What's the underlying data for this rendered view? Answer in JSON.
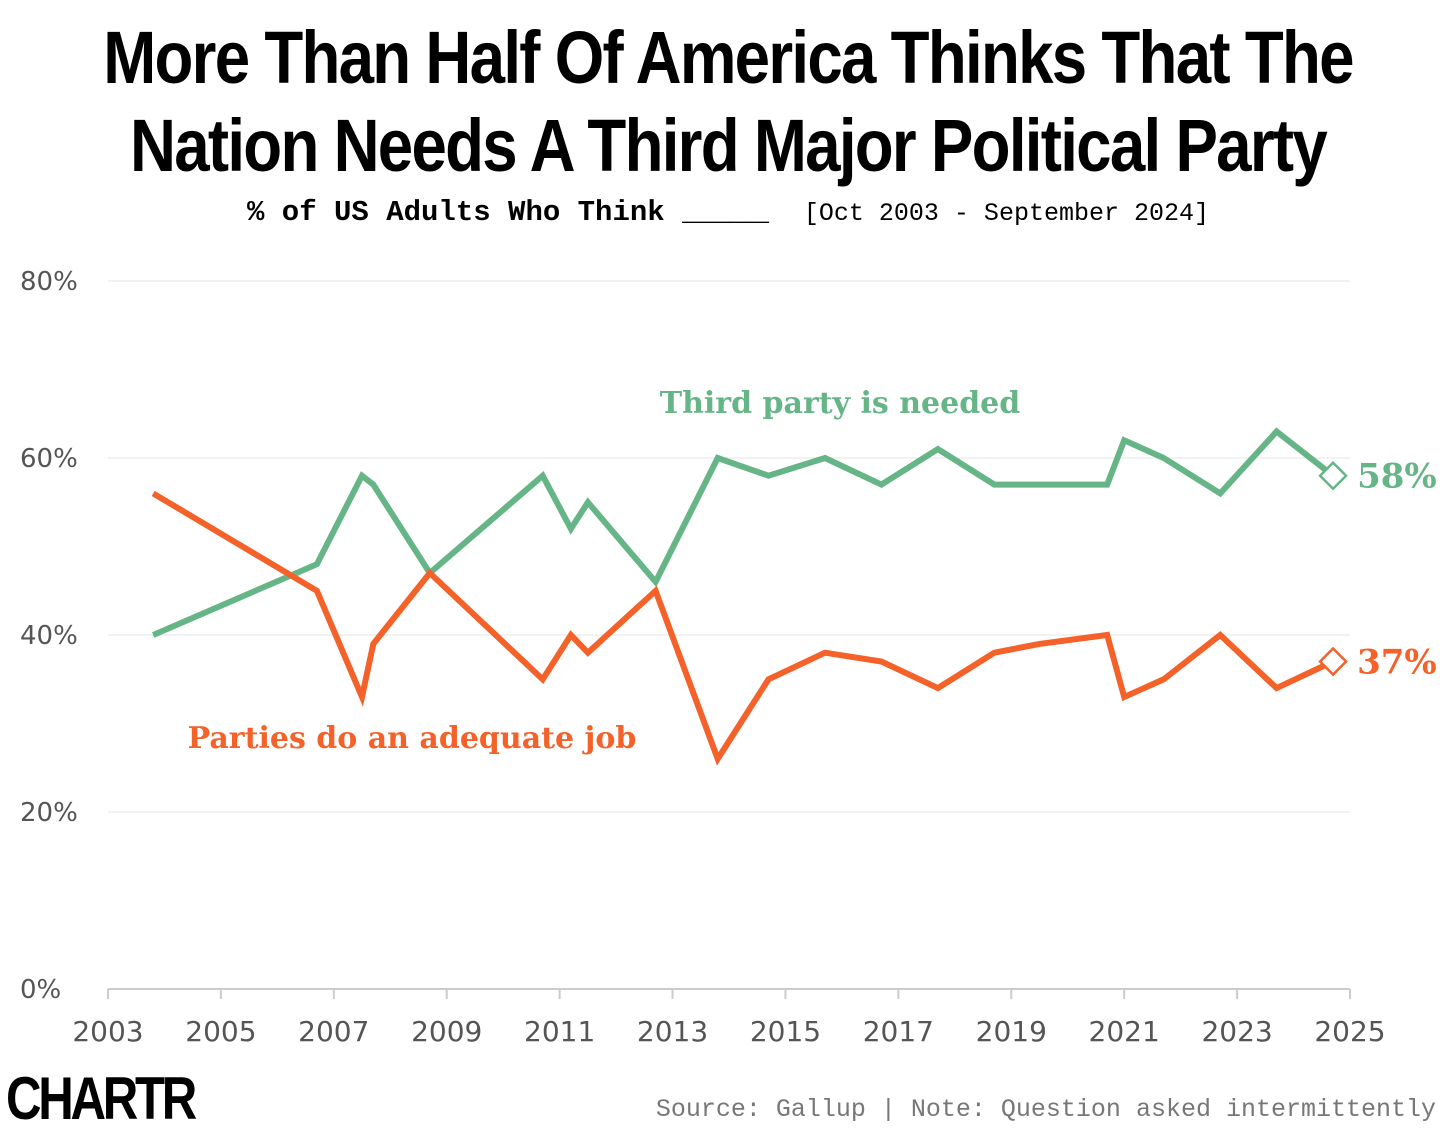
{
  "header": {
    "title": "More Than Half Of America Thinks That The Nation Needs A Third Major Political Party",
    "subtitle": "% of US Adults Who Think _____",
    "date_range": "[Oct 2003 - September 2024]"
  },
  "footer": {
    "logo": "CHARTR",
    "source": "Source: Gallup | Note: Question asked intermittently"
  },
  "colors": {
    "third_party": "#66b587",
    "adequate": "#f4622a",
    "grid": "#eeeeee",
    "axis": "#cccccc"
  },
  "chart_data": {
    "type": "line",
    "title": "More Than Half Of America Thinks That The Nation Needs A Third Major Political Party",
    "subtitle": "% of US Adults Who Think _____",
    "xlim": [
      2003,
      2025
    ],
    "ylim": [
      0,
      80
    ],
    "x_ticks": [
      "2003",
      "2005",
      "2007",
      "2009",
      "2011",
      "2013",
      "2015",
      "2017",
      "2019",
      "2021",
      "2023",
      "2025"
    ],
    "y_ticks": [
      "0%",
      "20%",
      "40%",
      "60%",
      "80%"
    ],
    "grid": true,
    "legend": "direct-labels",
    "series": [
      {
        "name": "Third party is needed",
        "end_label": "58%",
        "points": [
          [
            2003.8,
            40
          ],
          [
            2006.7,
            48
          ],
          [
            2007.5,
            58
          ],
          [
            2007.7,
            57
          ],
          [
            2008.7,
            47
          ],
          [
            2010.7,
            58
          ],
          [
            2011.2,
            52
          ],
          [
            2011.5,
            55
          ],
          [
            2012.7,
            46
          ],
          [
            2013.8,
            60
          ],
          [
            2014.7,
            58
          ],
          [
            2015.7,
            60
          ],
          [
            2016.7,
            57
          ],
          [
            2017.7,
            61
          ],
          [
            2018.7,
            57
          ],
          [
            2019.5,
            57
          ],
          [
            2020.7,
            57
          ],
          [
            2021.0,
            62
          ],
          [
            2021.7,
            60
          ],
          [
            2022.7,
            56
          ],
          [
            2023.7,
            63
          ],
          [
            2024.7,
            58
          ]
        ]
      },
      {
        "name": "Parties do an adequate job",
        "end_label": "37%",
        "points": [
          [
            2003.8,
            56
          ],
          [
            2006.7,
            45
          ],
          [
            2007.5,
            33
          ],
          [
            2007.7,
            39
          ],
          [
            2008.7,
            47
          ],
          [
            2010.7,
            35
          ],
          [
            2011.2,
            40
          ],
          [
            2011.5,
            38
          ],
          [
            2012.7,
            45
          ],
          [
            2013.8,
            26
          ],
          [
            2014.7,
            35
          ],
          [
            2015.7,
            38
          ],
          [
            2016.7,
            37
          ],
          [
            2017.7,
            34
          ],
          [
            2018.7,
            38
          ],
          [
            2019.5,
            39
          ],
          [
            2020.7,
            40
          ],
          [
            2021.0,
            33
          ],
          [
            2021.7,
            35
          ],
          [
            2022.7,
            40
          ],
          [
            2023.7,
            34
          ],
          [
            2024.7,
            37
          ]
        ]
      }
    ]
  }
}
